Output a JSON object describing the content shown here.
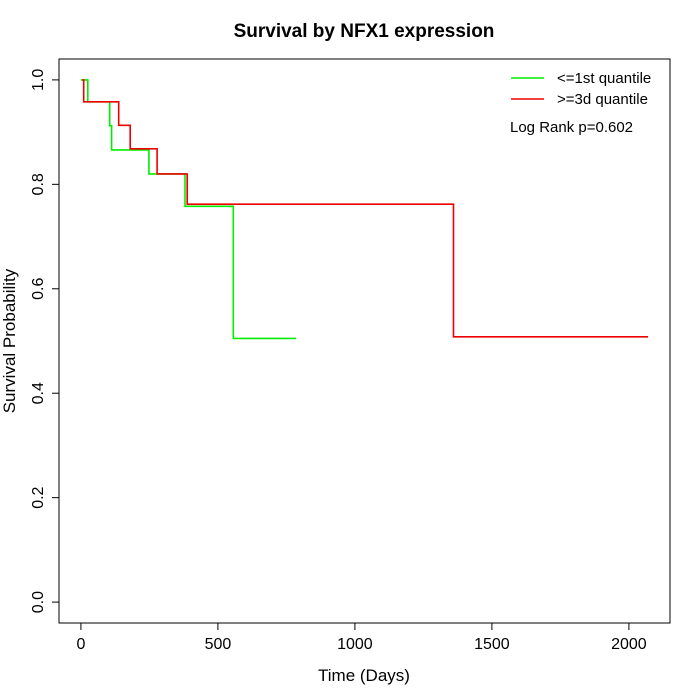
{
  "chart_data": {
    "type": "line",
    "step": true,
    "title": "Survival by NFX1 expression",
    "xlabel": "Time (Days)",
    "ylabel": "Survival Probability",
    "xlim": [
      -80,
      2150
    ],
    "ylim": [
      -0.04,
      1.04
    ],
    "xticks": [
      0,
      500,
      1000,
      1500,
      2000
    ],
    "yticks": [
      0.0,
      0.2,
      0.4,
      0.6,
      0.8,
      1.0
    ],
    "xtick_labels": [
      "0",
      "500",
      "1000",
      "1500",
      "2000"
    ],
    "ytick_labels": [
      "0.0",
      "0.2",
      "0.4",
      "0.6",
      "0.8",
      "1.0"
    ],
    "legend_position": "top-right",
    "grid": false,
    "annotation": "Log Rank p=0.602",
    "series": [
      {
        "name": "<=1st quantile",
        "color": "#00ee00",
        "points": [
          [
            0,
            1.0
          ],
          [
            25,
            1.0
          ],
          [
            25,
            0.958
          ],
          [
            105,
            0.958
          ],
          [
            105,
            0.912
          ],
          [
            112,
            0.912
          ],
          [
            112,
            0.866
          ],
          [
            248,
            0.866
          ],
          [
            248,
            0.82
          ],
          [
            380,
            0.82
          ],
          [
            380,
            0.758
          ],
          [
            556,
            0.758
          ],
          [
            556,
            0.505
          ],
          [
            785,
            0.505
          ]
        ]
      },
      {
        "name": ">=3d quantile",
        "color": "#ee0000",
        "points": [
          [
            5,
            1.0
          ],
          [
            10,
            1.0
          ],
          [
            10,
            0.958
          ],
          [
            138,
            0.958
          ],
          [
            138,
            0.913
          ],
          [
            180,
            0.913
          ],
          [
            180,
            0.868
          ],
          [
            278,
            0.868
          ],
          [
            278,
            0.82
          ],
          [
            388,
            0.82
          ],
          [
            388,
            0.762
          ],
          [
            1360,
            0.762
          ],
          [
            1360,
            0.508
          ],
          [
            2070,
            0.508
          ]
        ]
      }
    ]
  }
}
